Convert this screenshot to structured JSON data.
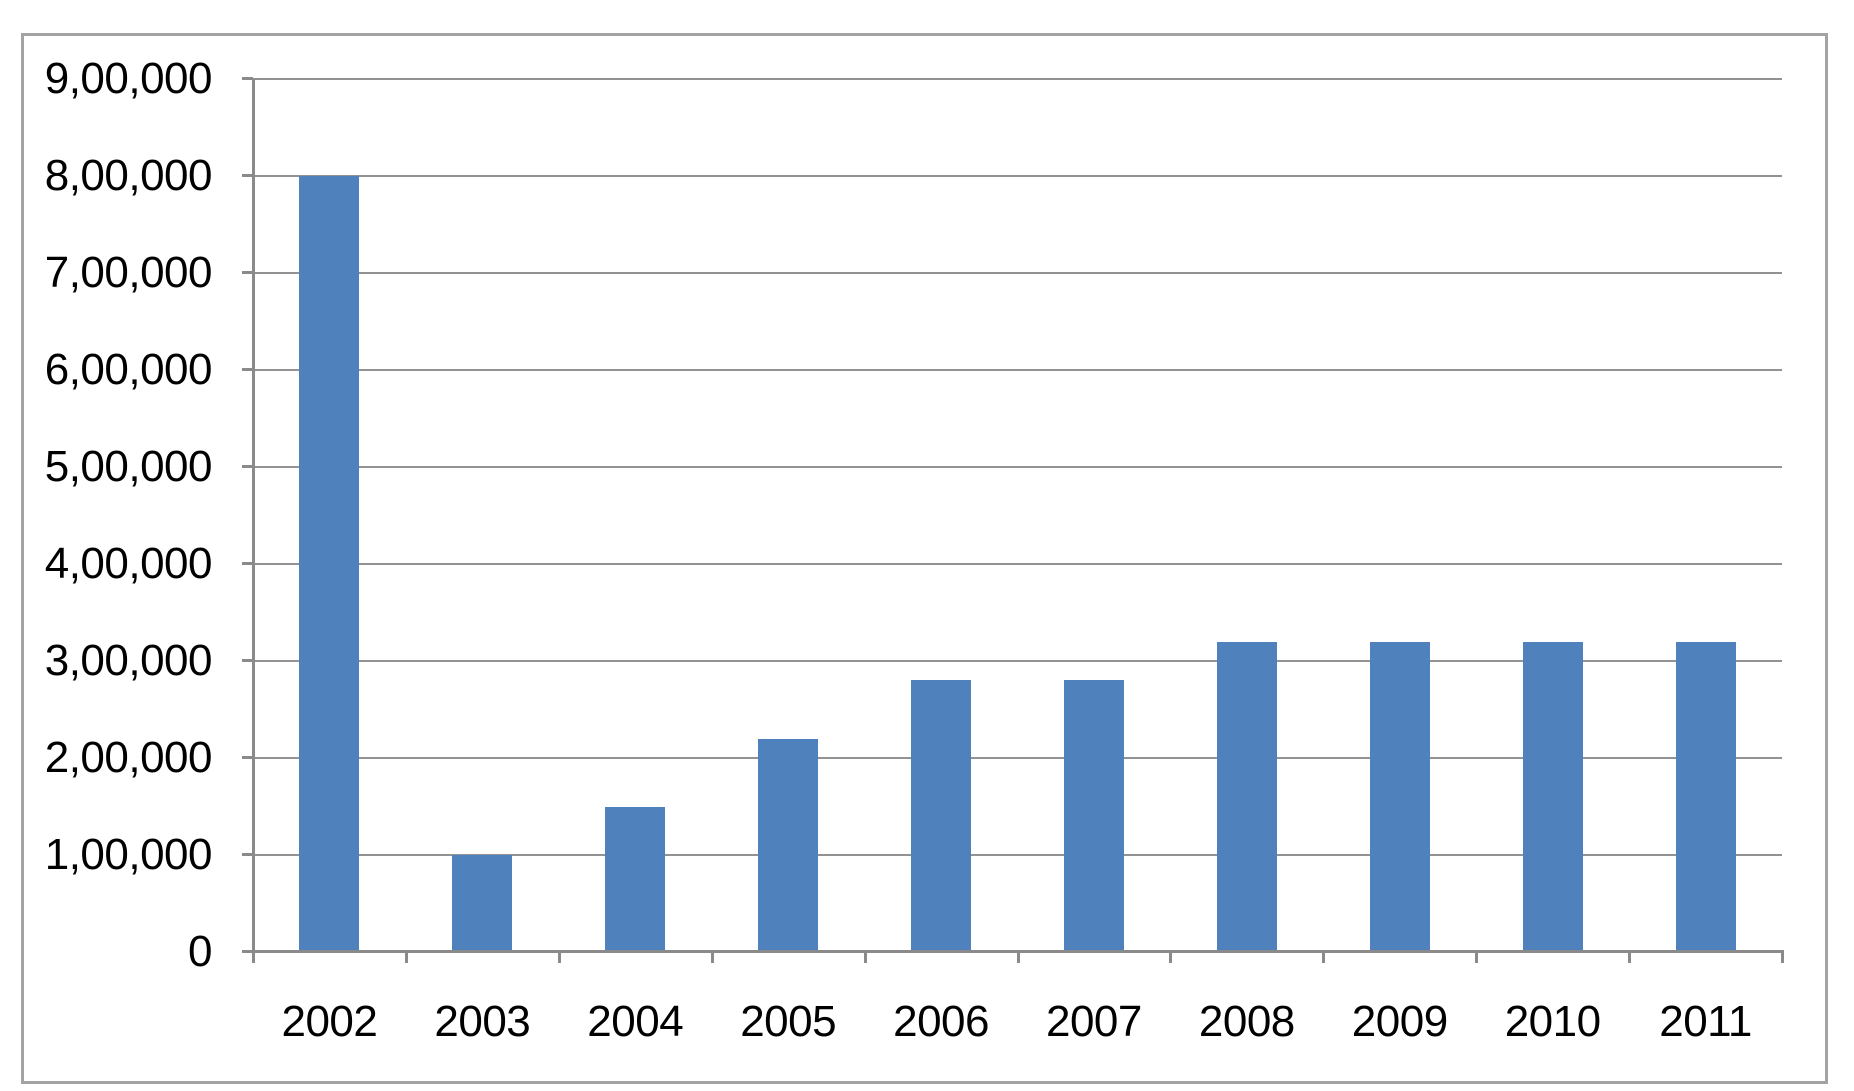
{
  "chart_data": {
    "type": "bar",
    "title": "",
    "xlabel": "",
    "ylabel": "",
    "categories": [
      "2002",
      "2003",
      "2004",
      "2005",
      "2006",
      "2007",
      "2008",
      "2009",
      "2010",
      "2011"
    ],
    "values": [
      800000,
      100000,
      150000,
      220000,
      280000,
      280000,
      320000,
      320000,
      320000,
      320000
    ],
    "y_tick_values": [
      0,
      100000,
      200000,
      300000,
      400000,
      500000,
      600000,
      700000,
      800000,
      900000
    ],
    "y_tick_labels": [
      "0",
      "1,00,000",
      "2,00,000",
      "3,00,000",
      "4,00,000",
      "5,00,000",
      "6,00,000",
      "7,00,000",
      "8,00,000",
      "9,00,000"
    ],
    "ylim": [
      0,
      900000
    ],
    "grid": "horizontal",
    "legend": "none",
    "number_format": "indian-lakh"
  },
  "colors": {
    "bar": "#4F81BD",
    "gridline": "#929292",
    "axis": "#8a8a8a",
    "tick": "#8a8a8a",
    "frame_border": "#a3a3a3",
    "text": "#000000",
    "background": "#ffffff"
  }
}
